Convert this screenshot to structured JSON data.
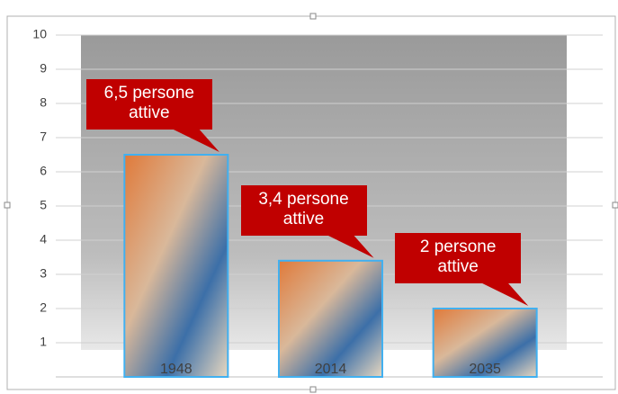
{
  "chart_data": {
    "type": "bar",
    "categories": [
      "1948",
      "2014",
      "2035"
    ],
    "values": [
      6.5,
      3.4,
      2
    ],
    "value_labels": [
      "6,5 persone attive",
      "3,4 persone attive",
      "2 persone attive"
    ],
    "ylim": [
      0,
      10
    ],
    "yticks": [
      1,
      2,
      3,
      4,
      5,
      6,
      7,
      8,
      9,
      10
    ],
    "grid": true,
    "color": "#c00000"
  }
}
